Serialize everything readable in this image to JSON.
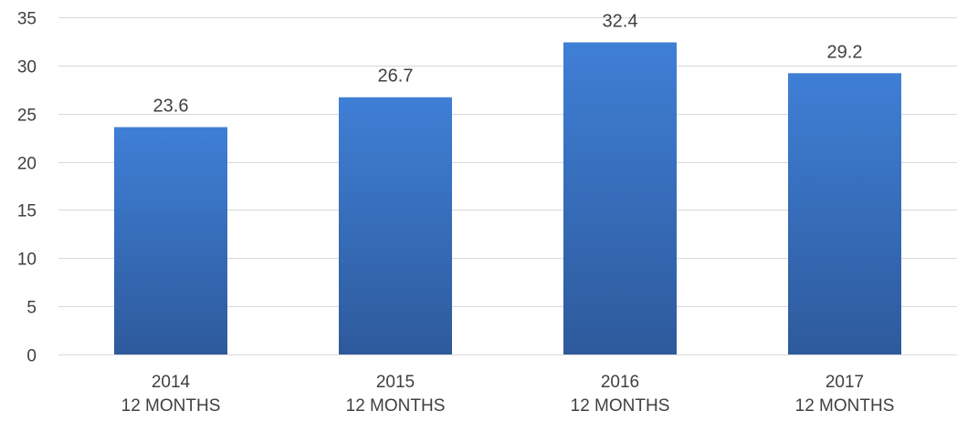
{
  "chart_data": {
    "type": "bar",
    "categories": [
      [
        "2014",
        "12 MONTHS"
      ],
      [
        "2015",
        "12 MONTHS"
      ],
      [
        "2016",
        "12 MONTHS"
      ],
      [
        "2017",
        "12 MONTHS"
      ]
    ],
    "values": [
      23.6,
      26.7,
      32.4,
      29.2
    ],
    "data_labels": [
      "23.6",
      "26.7",
      "32.4",
      "29.2"
    ],
    "title": "",
    "xlabel": "",
    "ylabel": "",
    "ylim": [
      0,
      35
    ],
    "yticks": [
      0,
      5,
      10,
      15,
      20,
      25,
      30,
      35
    ],
    "grid": true,
    "legend": "none",
    "colors": {
      "bar_top": "#3f7fd6",
      "bar_bottom": "#2e5a9c",
      "grid": "#d9d9d9",
      "text": "#404040"
    }
  }
}
